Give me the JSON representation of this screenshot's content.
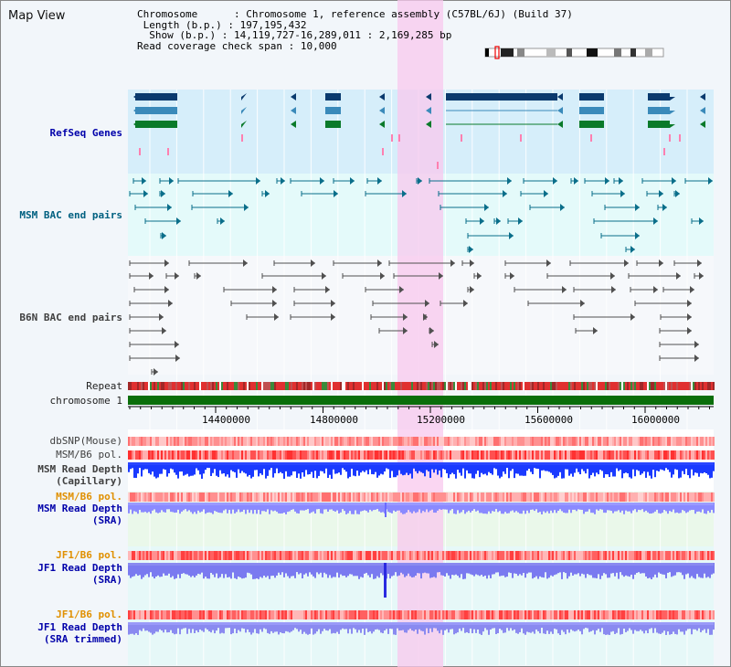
{
  "page": {
    "title": "Map View"
  },
  "info": {
    "chromosome_label": "Chromosome",
    "chromosome_value": "Chromosome 1, reference assembly (C57BL/6J) (Build 37)",
    "length_label": "Length (b.p.)",
    "length_value": "197,195,432",
    "show_label": "Show (b.p.)",
    "show_value": "14,119,727-16,289,011 : 2,169,285 bp",
    "coverage_label": "Read coverage check span",
    "coverage_value": "10,000"
  },
  "tracks": {
    "refseq": "RefSeq Genes",
    "msm_bac": "MSM BAC end pairs",
    "b6n_bac": "B6N BAC end pairs",
    "repeat": "Repeat",
    "chromosome": "chromosome 1",
    "dbsnp": "dbSNP(Mouse)",
    "msm_b6_pol": "MSM/B6 pol.",
    "msm_depth_cap_1": "MSM Read Depth",
    "msm_depth_cap_2": "(Capillary)",
    "msm_b6_pol2": "MSM/B6 pol.",
    "msm_depth_sra_1": "MSM Read Depth",
    "msm_depth_sra_2": "(SRA)",
    "jf1_pol": "JF1/B6 pol.",
    "jf1_depth_sra_1": "JF1 Read Depth",
    "jf1_depth_sra_2": "(SRA)",
    "jf1_pol2": "JF1/B6 pol.",
    "jf1_depth_trim_1": "JF1 Read Depth",
    "jf1_depth_trim_2": "(SRA trimmed)"
  },
  "axis": {
    "ticks": [
      "14400000",
      "14800000",
      "15200000",
      "15600000",
      "16000000"
    ]
  },
  "colors": {
    "refseq_bg": "#d6eefa",
    "msm_bg": "#e4fafa",
    "highlight": "#f8c8ee",
    "gene_dark": "#0a3a6e",
    "gene_mid": "#3a8aba",
    "gene_green": "#0a7a2a",
    "chromosome_bar": "#0a6e0a",
    "label_blue": "#0000aa",
    "label_teal": "#006080",
    "label_orange": "#e09000",
    "label_gray": "#404040"
  }
}
